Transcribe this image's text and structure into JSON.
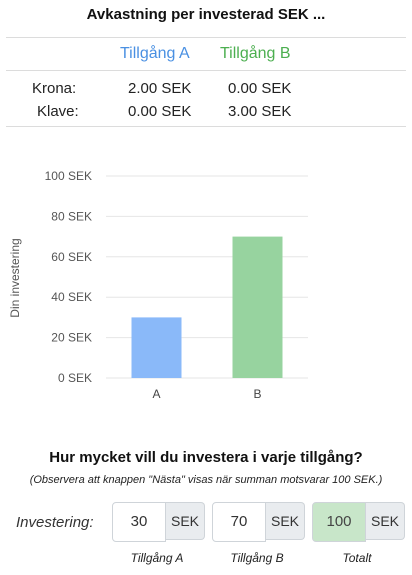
{
  "title": "Avkastning per investerad SEK ...",
  "returns_table": {
    "columns": [
      "Tillgång A",
      "Tillgång B"
    ],
    "column_colors": [
      "#4a90e2",
      "#4caf50"
    ],
    "rows": [
      {
        "label": "Krona:",
        "a": "2.00 SEK",
        "b": "0.00 SEK"
      },
      {
        "label": "Klave:",
        "a": "0.00 SEK",
        "b": "3.00 SEK"
      }
    ]
  },
  "chart_data": {
    "type": "bar",
    "categories": [
      "A",
      "B"
    ],
    "values": [
      30,
      70
    ],
    "colors": [
      "#8ab9f9",
      "#97d39f"
    ],
    "ylabel": "Din investering",
    "ylim": [
      0,
      100
    ],
    "yticks": [
      "0 SEK",
      "20 SEK",
      "40 SEK",
      "60 SEK",
      "80 SEK",
      "100 SEK"
    ],
    "ytick_values": [
      0,
      20,
      40,
      60,
      80,
      100
    ],
    "grid": true
  },
  "question": "Hur mycket vill du investera i varje tillgång?",
  "note": "(Observera att knappen \"Nästa\" visas när summan motsvarar 100 SEK.)",
  "investment": {
    "label": "Investering:",
    "unit": "SEK",
    "a": {
      "value": "30",
      "caption": "Tillgång A"
    },
    "b": {
      "value": "70",
      "caption": "Tillgång B"
    },
    "total": {
      "value": "100",
      "caption": "Totalt"
    }
  }
}
